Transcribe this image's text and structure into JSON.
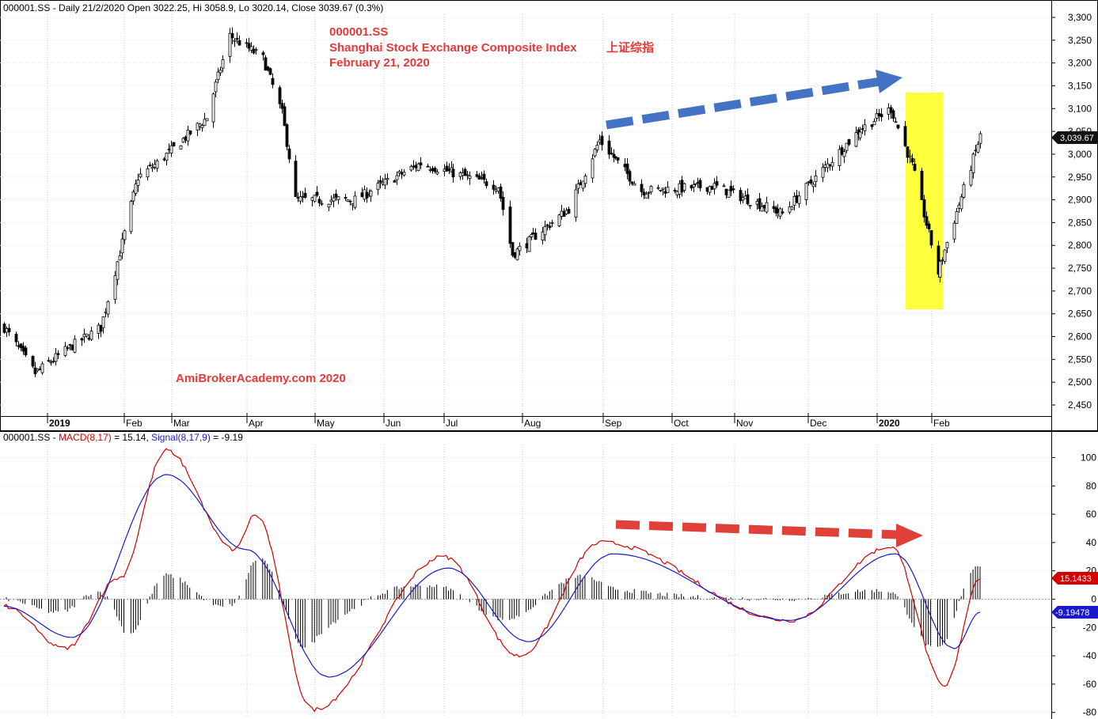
{
  "price_panel": {
    "title": "000001.SS - Daily 21/2/2020 Open 3022.25, Hi 3058.9, Lo 3020.14, Close 3039.67 (0.3%)",
    "last_value_label": "3,039.67",
    "annotation": {
      "ticker": "000001.SS",
      "name": "Shanghai Stock Exchange Composite Index",
      "chinese_name": "上证综指",
      "date": "February 21, 2020"
    },
    "watermark": "AmiBrokerAcademy.com  2020",
    "y_ticks": [
      "3,300",
      "3,250",
      "3,200",
      "3,150",
      "3,100",
      "3,050",
      "3,000",
      "2,950",
      "2,900",
      "2,850",
      "2,800",
      "2,750",
      "2,700",
      "2,650",
      "2,600",
      "2,550",
      "2,500",
      "2,450"
    ]
  },
  "macd_panel": {
    "title_ticker": "000001.SS - ",
    "title_macd": "MACD(8,17)",
    "title_macd_value": " = 15.14, ",
    "title_signal": "Signal(8,17,9)",
    "title_signal_value": " = -9.19",
    "macd_badge": "15.1433",
    "signal_badge": "-9.19478",
    "y_ticks": [
      "100",
      "80",
      "60",
      "40",
      "20",
      "0",
      "-20",
      "-40",
      "-60",
      "-80"
    ]
  },
  "x_axis": {
    "months": [
      {
        "label": "2019",
        "bold": true
      },
      {
        "label": "Feb"
      },
      {
        "label": "Mar"
      },
      {
        "label": "Apr"
      },
      {
        "label": "May"
      },
      {
        "label": "Jun"
      },
      {
        "label": "Jul"
      },
      {
        "label": "Aug"
      },
      {
        "label": "Sep"
      },
      {
        "label": "Oct"
      },
      {
        "label": "Nov"
      },
      {
        "label": "Dec"
      },
      {
        "label": "2020",
        "bold": true
      },
      {
        "label": "Feb"
      }
    ]
  },
  "colors": {
    "macd": "#d40000",
    "signal": "#1a1acc",
    "arrow_up": "#4472c4",
    "arrow_down": "#e0403a",
    "highlight": "#ffff33",
    "annotation": "#e8393a"
  },
  "chart_data": [
    {
      "type": "candlestick",
      "series_name": "000001.SS",
      "x_range": [
        "2019-01-02",
        "2020-02-21"
      ],
      "ylim": [
        2430,
        3330
      ],
      "close_path": [
        {
          "date": "2019-01-02",
          "close": 2620
        },
        {
          "date": "2019-01-15",
          "close": 2520
        },
        {
          "date": "2019-01-31",
          "close": 2580
        },
        {
          "date": "2019-02-12",
          "close": 2620
        },
        {
          "date": "2019-02-28",
          "close": 2950
        },
        {
          "date": "2019-03-08",
          "close": 2980
        },
        {
          "date": "2019-03-29",
          "close": 3080
        },
        {
          "date": "2019-04-08",
          "close": 3260
        },
        {
          "date": "2019-04-22",
          "close": 3210
        },
        {
          "date": "2019-04-30",
          "close": 3090
        },
        {
          "date": "2019-05-06",
          "close": 2900
        },
        {
          "date": "2019-05-31",
          "close": 2900
        },
        {
          "date": "2019-06-28",
          "close": 2980
        },
        {
          "date": "2019-07-31",
          "close": 2930
        },
        {
          "date": "2019-08-06",
          "close": 2780
        },
        {
          "date": "2019-08-30",
          "close": 2880
        },
        {
          "date": "2019-09-12",
          "close": 3030
        },
        {
          "date": "2019-09-30",
          "close": 2920
        },
        {
          "date": "2019-10-31",
          "close": 2930
        },
        {
          "date": "2019-11-29",
          "close": 2870
        },
        {
          "date": "2019-12-31",
          "close": 3050
        },
        {
          "date": "2020-01-14",
          "close": 3100
        },
        {
          "date": "2020-01-23",
          "close": 2975
        },
        {
          "date": "2020-02-03",
          "close": 2740
        },
        {
          "date": "2020-02-21",
          "close": 3039.67
        }
      ]
    },
    {
      "type": "line",
      "title": "MACD(8,17)",
      "ylim": [
        -80,
        110
      ],
      "series": [
        {
          "name": "MACD(8,17)",
          "last": 15.14,
          "values": [
            {
              "date": "2019-01-02",
              "value": -5
            },
            {
              "date": "2019-01-28",
              "value": -35
            },
            {
              "date": "2019-02-20",
              "value": 15
            },
            {
              "date": "2019-03-12",
              "value": 105
            },
            {
              "date": "2019-04-10",
              "value": 35
            },
            {
              "date": "2019-04-19",
              "value": 60
            },
            {
              "date": "2019-05-13",
              "value": -78
            },
            {
              "date": "2019-07-08",
              "value": 30
            },
            {
              "date": "2019-08-09",
              "value": -40
            },
            {
              "date": "2019-09-13",
              "value": 40
            },
            {
              "date": "2019-12-02",
              "value": -15
            },
            {
              "date": "2020-01-14",
              "value": 37
            },
            {
              "date": "2020-02-06",
              "value": -62
            },
            {
              "date": "2020-02-21",
              "value": 15.14
            }
          ]
        },
        {
          "name": "Signal(8,17,9)",
          "last": -9.19,
          "values": [
            {
              "date": "2019-01-02",
              "value": -5
            },
            {
              "date": "2019-01-31",
              "value": -27
            },
            {
              "date": "2019-03-12",
              "value": 88
            },
            {
              "date": "2019-04-15",
              "value": 35
            },
            {
              "date": "2019-05-20",
              "value": -55
            },
            {
              "date": "2019-07-10",
              "value": 22
            },
            {
              "date": "2019-08-13",
              "value": -30
            },
            {
              "date": "2019-09-18",
              "value": 32
            },
            {
              "date": "2019-12-02",
              "value": -15
            },
            {
              "date": "2020-01-16",
              "value": 32
            },
            {
              "date": "2020-02-10",
              "value": -35
            },
            {
              "date": "2020-02-21",
              "value": -9.19
            }
          ]
        }
      ]
    }
  ]
}
